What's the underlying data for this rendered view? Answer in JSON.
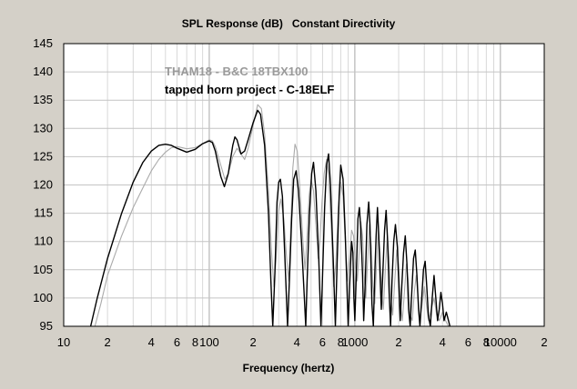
{
  "chart_data": {
    "type": "line",
    "title": "SPL Response (dB)   Constant Directivity",
    "xlabel": "Frequency (hertz)",
    "ylabel": "",
    "x_scale": "log",
    "xlim": [
      10,
      20000
    ],
    "ylim": [
      95,
      145
    ],
    "y_ticks": [
      95,
      100,
      105,
      110,
      115,
      120,
      125,
      130,
      135,
      140,
      145
    ],
    "x_tick_labels": [
      {
        "x": 10,
        "label": "10"
      },
      {
        "x": 20,
        "label": "2"
      },
      {
        "x": 40,
        "label": "4"
      },
      {
        "x": 60,
        "label": "6"
      },
      {
        "x": 80,
        "label": "8"
      },
      {
        "x": 100,
        "label": "100"
      },
      {
        "x": 200,
        "label": "2"
      },
      {
        "x": 400,
        "label": "4"
      },
      {
        "x": 600,
        "label": "6"
      },
      {
        "x": 800,
        "label": "8"
      },
      {
        "x": 1000,
        "label": "1000"
      },
      {
        "x": 2000,
        "label": "2"
      },
      {
        "x": 4000,
        "label": "4"
      },
      {
        "x": 6000,
        "label": "6"
      },
      {
        "x": 8000,
        "label": "8"
      },
      {
        "x": 10000,
        "label": "10000"
      },
      {
        "x": 20000,
        "label": "2"
      }
    ],
    "grid": true,
    "annotations": [
      {
        "text": "THAM18 - B&C 18TBX100",
        "color": "#9a9a9a"
      },
      {
        "text": "tapped horn project - C-18ELF",
        "color": "#000000"
      }
    ],
    "series": [
      {
        "color": "#000000",
        "points": [
          [
            15,
            94
          ],
          [
            17,
            100
          ],
          [
            20,
            107
          ],
          [
            25,
            115
          ],
          [
            30,
            120.5
          ],
          [
            35,
            124
          ],
          [
            40,
            126
          ],
          [
            45,
            127
          ],
          [
            50,
            127.2
          ],
          [
            55,
            127
          ],
          [
            60,
            126.5
          ],
          [
            70,
            125.8
          ],
          [
            80,
            126.3
          ],
          [
            90,
            127.3
          ],
          [
            100,
            127.8
          ],
          [
            105,
            127.5
          ],
          [
            110,
            126
          ],
          [
            120,
            121.5
          ],
          [
            127,
            119.7
          ],
          [
            135,
            122
          ],
          [
            145,
            127
          ],
          [
            150,
            128.5
          ],
          [
            155,
            128
          ],
          [
            165,
            125.5
          ],
          [
            175,
            126
          ],
          [
            185,
            128
          ],
          [
            200,
            131
          ],
          [
            215,
            133.2
          ],
          [
            225,
            132.5
          ],
          [
            240,
            127
          ],
          [
            255,
            115
          ],
          [
            265,
            103
          ],
          [
            273,
            95
          ],
          [
            282,
            104
          ],
          [
            292,
            117
          ],
          [
            300,
            120.5
          ],
          [
            308,
            121
          ],
          [
            318,
            118
          ],
          [
            332,
            106
          ],
          [
            345,
            95
          ],
          [
            355,
            103
          ],
          [
            368,
            114
          ],
          [
            380,
            121
          ],
          [
            395,
            122.5
          ],
          [
            410,
            119
          ],
          [
            430,
            110
          ],
          [
            450,
            100
          ],
          [
            460,
            95
          ],
          [
            470,
            103
          ],
          [
            488,
            115
          ],
          [
            505,
            122
          ],
          [
            520,
            124
          ],
          [
            540,
            119
          ],
          [
            565,
            107
          ],
          [
            585,
            95
          ],
          [
            600,
            104
          ],
          [
            620,
            116
          ],
          [
            640,
            123.5
          ],
          [
            660,
            125.5
          ],
          [
            680,
            120
          ],
          [
            710,
            107
          ],
          [
            735,
            95
          ],
          [
            755,
            106
          ],
          [
            780,
            118
          ],
          [
            800,
            123.5
          ],
          [
            830,
            121
          ],
          [
            860,
            111
          ],
          [
            880,
            103
          ],
          [
            900,
            95
          ],
          [
            920,
            102
          ],
          [
            950,
            110
          ],
          [
            970,
            108
          ],
          [
            985,
            100
          ],
          [
            1000,
            96
          ],
          [
            1020,
            103
          ],
          [
            1050,
            114
          ],
          [
            1075,
            116
          ],
          [
            1100,
            112
          ],
          [
            1130,
            104
          ],
          [
            1150,
            96
          ],
          [
            1180,
            103
          ],
          [
            1210,
            113
          ],
          [
            1245,
            117
          ],
          [
            1270,
            113
          ],
          [
            1290,
            106
          ],
          [
            1310,
            99
          ],
          [
            1340,
            95
          ],
          [
            1370,
            104
          ],
          [
            1400,
            111
          ],
          [
            1430,
            116
          ],
          [
            1460,
            111
          ],
          [
            1490,
            104
          ],
          [
            1520,
            98
          ],
          [
            1560,
            105
          ],
          [
            1600,
            112
          ],
          [
            1640,
            115.5
          ],
          [
            1680,
            110
          ],
          [
            1720,
            101
          ],
          [
            1760,
            95
          ],
          [
            1800,
            103
          ],
          [
            1850,
            110
          ],
          [
            1900,
            113
          ],
          [
            1960,
            109
          ],
          [
            2000,
            103
          ],
          [
            2050,
            96
          ],
          [
            2100,
            102
          ],
          [
            2160,
            108
          ],
          [
            2220,
            111
          ],
          [
            2280,
            106
          ],
          [
            2340,
            98
          ],
          [
            2400,
            95
          ],
          [
            2460,
            101
          ],
          [
            2530,
            107
          ],
          [
            2600,
            108.5
          ],
          [
            2670,
            104
          ],
          [
            2740,
            98
          ],
          [
            2800,
            95
          ],
          [
            2880,
            100
          ],
          [
            2960,
            105
          ],
          [
            3040,
            106.5
          ],
          [
            3120,
            102
          ],
          [
            3200,
            97
          ],
          [
            3300,
            95
          ],
          [
            3400,
            100
          ],
          [
            3500,
            104
          ],
          [
            3600,
            100
          ],
          [
            3700,
            96
          ],
          [
            3800,
            98
          ],
          [
            3900,
            101
          ],
          [
            4000,
            99
          ],
          [
            4100,
            96
          ],
          [
            4250,
            97.5
          ],
          [
            4400,
            96
          ],
          [
            4500,
            95
          ]
        ]
      },
      {
        "color": "#aaaaaa",
        "points": [
          [
            16,
            94
          ],
          [
            18,
            99
          ],
          [
            20,
            104
          ],
          [
            25,
            111
          ],
          [
            30,
            116
          ],
          [
            35,
            119.5
          ],
          [
            40,
            122.5
          ],
          [
            45,
            124.5
          ],
          [
            50,
            125.8
          ],
          [
            55,
            126.6
          ],
          [
            60,
            126.8
          ],
          [
            70,
            126.4
          ],
          [
            80,
            126.6
          ],
          [
            90,
            127.3
          ],
          [
            100,
            128
          ],
          [
            105,
            127.8
          ],
          [
            110,
            126.8
          ],
          [
            120,
            123.5
          ],
          [
            128,
            121
          ],
          [
            135,
            122
          ],
          [
            145,
            125
          ],
          [
            155,
            126.5
          ],
          [
            165,
            125.5
          ],
          [
            175,
            124.5
          ],
          [
            185,
            126.5
          ],
          [
            200,
            130.5
          ],
          [
            215,
            134.2
          ],
          [
            228,
            133.5
          ],
          [
            240,
            129
          ],
          [
            255,
            119
          ],
          [
            268,
            108
          ],
          [
            278,
            102
          ],
          [
            288,
            107
          ],
          [
            298,
            115
          ],
          [
            310,
            117.5
          ],
          [
            325,
            114
          ],
          [
            340,
            107
          ],
          [
            352,
            103
          ],
          [
            362,
            112
          ],
          [
            375,
            123
          ],
          [
            388,
            127.2
          ],
          [
            402,
            126
          ],
          [
            420,
            119
          ],
          [
            440,
            110
          ],
          [
            455,
            105
          ],
          [
            468,
            110
          ],
          [
            485,
            118
          ],
          [
            500,
            121
          ],
          [
            520,
            119
          ],
          [
            540,
            113
          ],
          [
            560,
            107
          ],
          [
            575,
            110
          ],
          [
            595,
            117
          ],
          [
            615,
            122
          ],
          [
            640,
            124.5
          ],
          [
            660,
            122
          ],
          [
            690,
            112
          ],
          [
            715,
            102
          ],
          [
            740,
            106
          ],
          [
            770,
            116
          ],
          [
            800,
            120.5
          ],
          [
            830,
            118
          ],
          [
            860,
            110
          ],
          [
            890,
            103
          ],
          [
            920,
            107
          ],
          [
            950,
            112
          ],
          [
            980,
            111
          ],
          [
            1010,
            106
          ],
          [
            1040,
            103
          ],
          [
            1070,
            108
          ],
          [
            1100,
            113.5
          ],
          [
            1130,
            111
          ],
          [
            1160,
            104
          ],
          [
            1190,
            100
          ],
          [
            1220,
            106
          ],
          [
            1260,
            113
          ],
          [
            1300,
            109
          ],
          [
            1330,
            102
          ],
          [
            1370,
            99
          ],
          [
            1410,
            106
          ],
          [
            1450,
            112
          ],
          [
            1490,
            108
          ],
          [
            1530,
            101
          ],
          [
            1570,
            98
          ],
          [
            1620,
            105
          ],
          [
            1670,
            111
          ],
          [
            1720,
            107
          ],
          [
            1770,
            100
          ],
          [
            1820,
            97
          ],
          [
            1880,
            103
          ],
          [
            1940,
            108.5
          ],
          [
            2000,
            106
          ],
          [
            2060,
            99
          ],
          [
            2120,
            96
          ],
          [
            2190,
            101
          ],
          [
            2260,
            106
          ],
          [
            2330,
            103
          ],
          [
            2400,
            97
          ],
          [
            2480,
            96
          ],
          [
            2560,
            101
          ],
          [
            2640,
            104
          ],
          [
            2720,
            100
          ],
          [
            2800,
            96
          ],
          [
            2900,
            99
          ],
          [
            3000,
            102
          ],
          [
            3100,
            99
          ],
          [
            3200,
            96
          ],
          [
            3350,
            98
          ],
          [
            3500,
            100
          ],
          [
            3650,
            97
          ],
          [
            3800,
            96
          ],
          [
            4000,
            97.5
          ],
          [
            4200,
            96
          ],
          [
            4400,
            95
          ]
        ]
      }
    ]
  }
}
